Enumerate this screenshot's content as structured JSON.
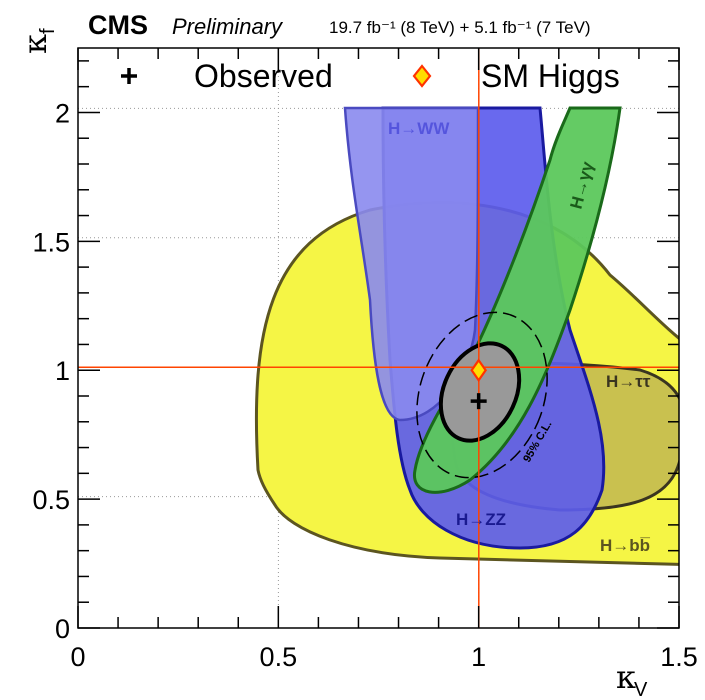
{
  "header": {
    "experiment": "CMS",
    "status": "Preliminary",
    "luminosity": "19.7 fb⁻¹ (8 TeV) + 5.1 fb⁻¹ (7 TeV)"
  },
  "legend": {
    "observed_label": "Observed",
    "sm_label": "SM Higgs",
    "placement": "top"
  },
  "chart_data": {
    "type": "contour",
    "xlabel": "κ",
    "xlabel_sub": "V",
    "ylabel": "κ",
    "ylabel_sub": "f",
    "xlim": [
      0,
      1.5
    ],
    "ylim": [
      0,
      2.25
    ],
    "x_ticks": [
      "0",
      "0.5",
      "1",
      "1.5"
    ],
    "y_ticks": [
      "0",
      "0.5",
      "1",
      "1.5",
      "2"
    ],
    "grid": true,
    "observed": {
      "x": 1.0,
      "y": 0.88
    },
    "sm_higgs": {
      "x": 1.0,
      "y": 1.0
    },
    "cl_label": "95% C.L.",
    "channels": [
      {
        "name": "H→WW",
        "color": "#8a8aee"
      },
      {
        "name": "H→ZZ",
        "color": "#5c5ced"
      },
      {
        "name": "H→γγ",
        "color": "#5cc85c"
      },
      {
        "name": "H→bb̅",
        "color": "#f5f545"
      },
      {
        "name": "H→ττ",
        "color": "#c4bb50"
      }
    ],
    "colors": {
      "sm_marker": "#ffdd00",
      "sm_marker_edge": "#ff3300",
      "ref_lines": "#ff4400",
      "combined": "#999999"
    }
  }
}
